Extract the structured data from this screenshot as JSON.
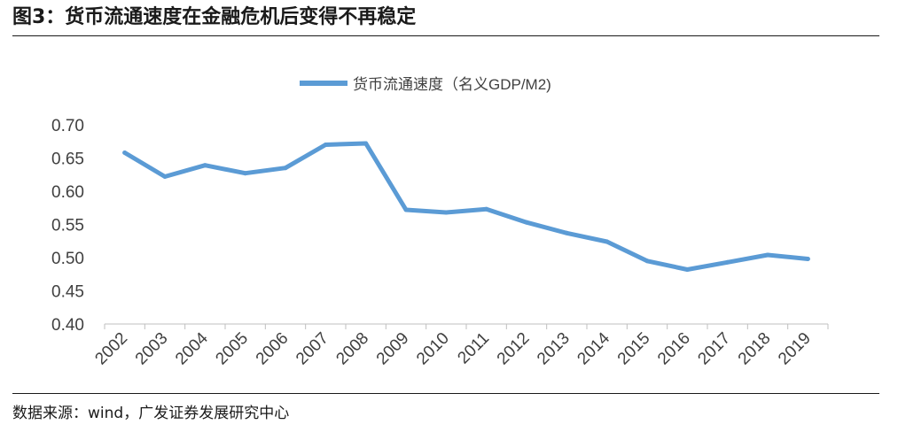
{
  "figure": {
    "title": "图3：货币流通速度在金融危机后变得不再稳定",
    "source": "数据来源：wind，广发证券发展研究中心"
  },
  "chart_data": {
    "type": "line",
    "title": "",
    "xlabel": "",
    "ylabel": "",
    "categories": [
      "2002",
      "2003",
      "2004",
      "2005",
      "2006",
      "2007",
      "2008",
      "2009",
      "2010",
      "2011",
      "2012",
      "2013",
      "2014",
      "2015",
      "2016",
      "2017",
      "2018",
      "2019"
    ],
    "series": [
      {
        "name": "货币流通速度（名义GDP/M2)",
        "color": "#5b9bd5",
        "values": [
          0.658,
          0.622,
          0.639,
          0.627,
          0.635,
          0.67,
          0.672,
          0.572,
          0.568,
          0.573,
          0.553,
          0.537,
          0.524,
          0.495,
          0.482,
          0.493,
          0.504,
          0.498
        ]
      }
    ],
    "ylim": [
      0.4,
      0.7
    ],
    "yticks": [
      "0.40",
      "0.45",
      "0.50",
      "0.55",
      "0.60",
      "0.65",
      "0.70"
    ],
    "grid": false,
    "legend_position": "top-center"
  }
}
